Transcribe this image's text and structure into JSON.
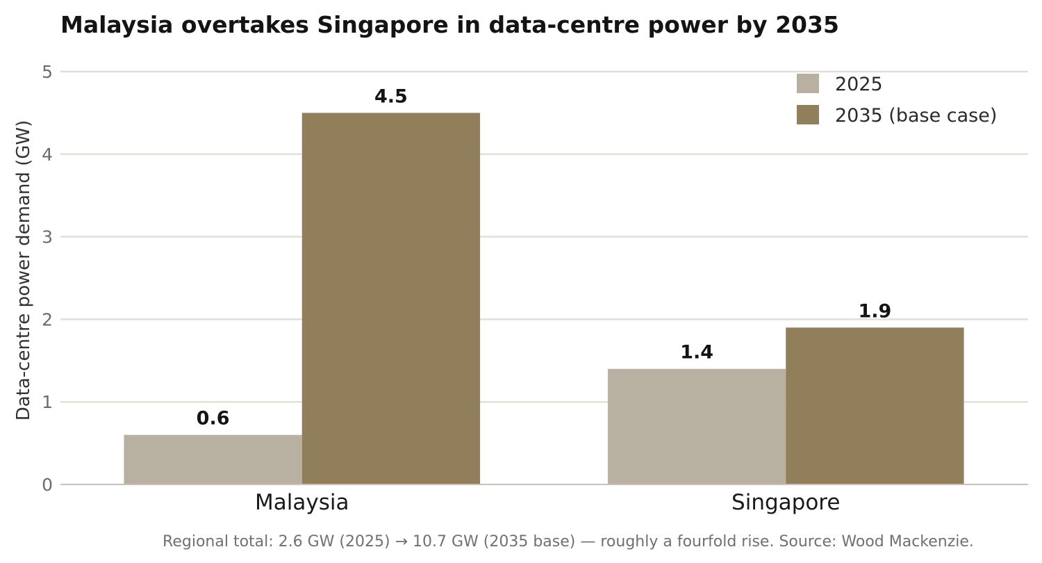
{
  "chart_data": {
    "type": "bar",
    "title": "Malaysia overtakes Singapore in data-centre power by 2035",
    "ylabel": "Data-centre power demand (GW)",
    "xlabel": "",
    "categories": [
      "Malaysia",
      "Singapore"
    ],
    "series": [
      {
        "name": "2025",
        "values": [
          0.6,
          1.4
        ],
        "color": "#b8b1a2"
      },
      {
        "name": "2035 (base case)",
        "values": [
          4.5,
          1.9
        ],
        "color": "#917f5b"
      }
    ],
    "ylim": [
      0,
      5
    ],
    "yticks": [
      "0",
      "1",
      "2",
      "3",
      "4",
      "5"
    ],
    "grid": true,
    "legend_position": "top-right",
    "footnote": "Regional total: 2.6 GW (2025) → 10.7 GW (2035 base) — roughly a fourfold rise.  Source: Wood Mackenzie."
  }
}
